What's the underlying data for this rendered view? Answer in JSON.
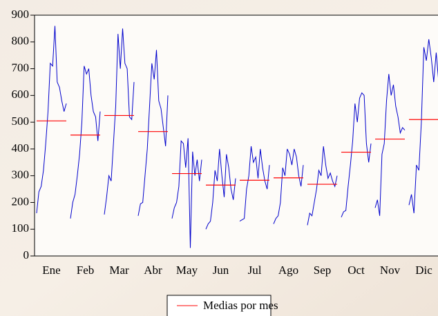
{
  "chart_data": {
    "type": "seasonal",
    "categories": [
      "Ene",
      "Feb",
      "Mar",
      "Abr",
      "May",
      "Jun",
      "Jul",
      "Ago",
      "Sep",
      "Oct",
      "Nov",
      "Dic"
    ],
    "series": [
      {
        "name": "Medias por mes",
        "color": "#ff0000",
        "values": [
          505,
          452,
          525,
          465,
          308,
          265,
          283,
          292,
          268,
          388,
          437,
          510
        ]
      }
    ],
    "subseries_color": "#0000cc",
    "subseries": [
      [
        160,
        240,
        260,
        320,
        420,
        540,
        720,
        710,
        860,
        650,
        630,
        580,
        540,
        570
      ],
      [
        140,
        200,
        230,
        300,
        380,
        500,
        710,
        680,
        700,
        600,
        540,
        520,
        430,
        540
      ],
      [
        155,
        220,
        300,
        280,
        420,
        560,
        830,
        700,
        850,
        720,
        700,
        520,
        510,
        650
      ],
      [
        150,
        195,
        200,
        300,
        400,
        560,
        720,
        660,
        770,
        580,
        550,
        480,
        410,
        600
      ],
      [
        140,
        180,
        200,
        260,
        430,
        420,
        330,
        440,
        30,
        390,
        300,
        360,
        280,
        360
      ],
      [
        100,
        120,
        130,
        200,
        320,
        280,
        400,
        300,
        220,
        380,
        330,
        250,
        210,
        290
      ],
      [
        130,
        135,
        140,
        250,
        300,
        410,
        350,
        370,
        290,
        400,
        330,
        280,
        250,
        340
      ],
      [
        120,
        140,
        150,
        200,
        330,
        300,
        400,
        380,
        340,
        400,
        370,
        300,
        260,
        340
      ],
      [
        115,
        160,
        150,
        200,
        250,
        320,
        300,
        410,
        340,
        290,
        310,
        280,
        260,
        300
      ],
      [
        145,
        165,
        170,
        260,
        340,
        430,
        570,
        500,
        590,
        610,
        600,
        420,
        350,
        420
      ],
      [
        180,
        210,
        150,
        380,
        420,
        580,
        680,
        600,
        640,
        560,
        520,
        460,
        480,
        470
      ],
      [
        190,
        230,
        160,
        340,
        320,
        500,
        780,
        730,
        810,
        740,
        650,
        760,
        650
      ]
    ],
    "ylim": [
      0,
      900
    ],
    "yticks": [
      0,
      100,
      200,
      300,
      400,
      500,
      600,
      700,
      800,
      900
    ]
  }
}
